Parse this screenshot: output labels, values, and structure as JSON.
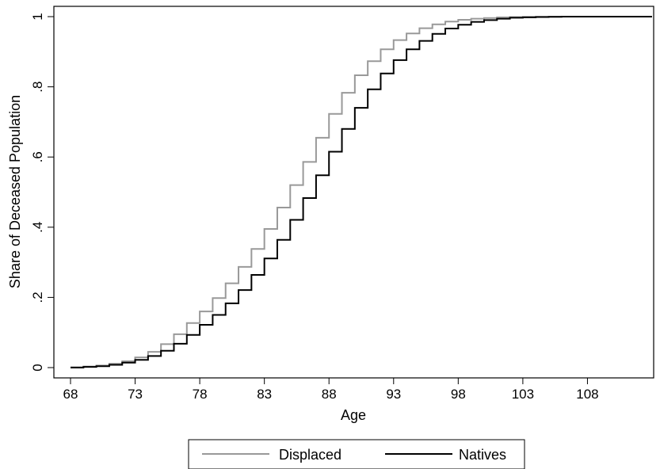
{
  "chart_data": {
    "type": "line",
    "title": "",
    "xlabel": "Age",
    "ylabel": "Share of Deceased Population",
    "xlim": [
      68,
      113
    ],
    "ylim": [
      0,
      1
    ],
    "x_ticks": [
      68,
      73,
      78,
      83,
      88,
      93,
      98,
      103,
      108
    ],
    "y_ticks": [
      0,
      0.2,
      0.4,
      0.6,
      0.8,
      1
    ],
    "y_tick_labels": [
      "0",
      ".2",
      ".4",
      ".6",
      ".8",
      "1"
    ],
    "step": true,
    "legend_position": "bottom",
    "x": [
      68,
      69,
      70,
      71,
      72,
      73,
      74,
      75,
      76,
      77,
      78,
      79,
      80,
      81,
      82,
      83,
      84,
      85,
      86,
      87,
      88,
      89,
      90,
      91,
      92,
      93,
      94,
      95,
      96,
      97,
      98,
      99,
      100,
      101,
      102,
      103,
      104,
      105,
      106,
      107,
      108,
      109,
      110,
      111,
      112,
      113
    ],
    "series": [
      {
        "name": "Displaced",
        "color": "#999999",
        "values": [
          0.001,
          0.003,
          0.006,
          0.011,
          0.018,
          0.029,
          0.045,
          0.067,
          0.095,
          0.127,
          0.16,
          0.198,
          0.24,
          0.287,
          0.338,
          0.395,
          0.456,
          0.52,
          0.586,
          0.655,
          0.723,
          0.783,
          0.833,
          0.873,
          0.907,
          0.933,
          0.952,
          0.967,
          0.978,
          0.986,
          0.991,
          0.994,
          0.996,
          0.998,
          0.999,
          0.9995,
          0.9998,
          1,
          1,
          1,
          1,
          1,
          1,
          1,
          1,
          1
        ]
      },
      {
        "name": "Natives",
        "color": "#000000",
        "values": [
          0,
          0.002,
          0.004,
          0.008,
          0.014,
          0.022,
          0.033,
          0.048,
          0.068,
          0.093,
          0.122,
          0.15,
          0.183,
          0.221,
          0.264,
          0.311,
          0.364,
          0.421,
          0.483,
          0.548,
          0.615,
          0.68,
          0.74,
          0.793,
          0.838,
          0.876,
          0.907,
          0.931,
          0.951,
          0.966,
          0.977,
          0.985,
          0.99,
          0.994,
          0.997,
          0.998,
          0.999,
          0.9995,
          1,
          1,
          1,
          1,
          1,
          1,
          1,
          1
        ]
      }
    ]
  }
}
